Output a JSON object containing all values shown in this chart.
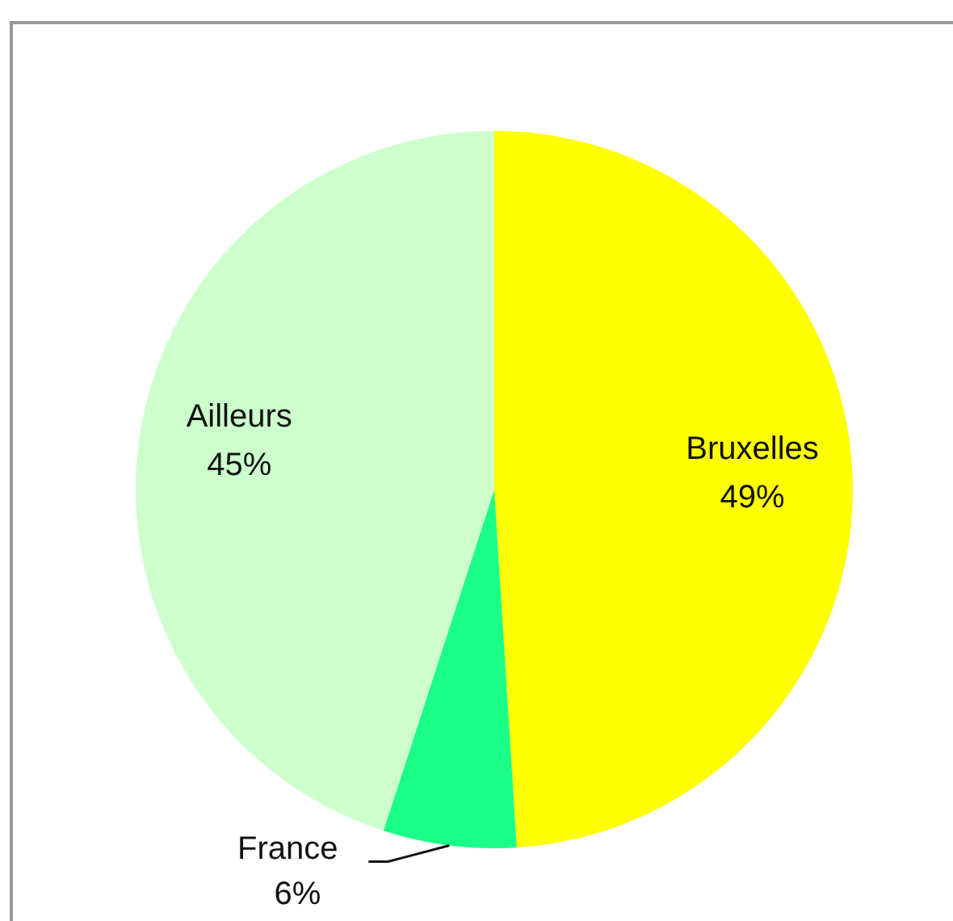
{
  "chart_data": {
    "type": "pie",
    "categories": [
      "Bruxelles",
      "France",
      "Ailleurs"
    ],
    "values": [
      49,
      6,
      45
    ],
    "colors": [
      "#ffff00",
      "#1aff88",
      "#ccffcc"
    ],
    "value_labels": [
      "49%",
      "6%",
      "45%"
    ],
    "legend": false
  }
}
